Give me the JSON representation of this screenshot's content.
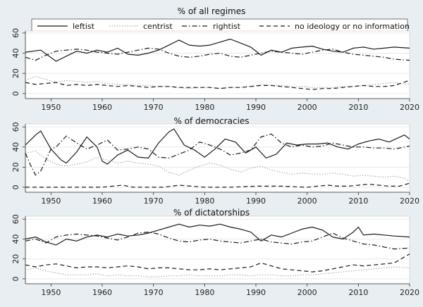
{
  "legend": {
    "entries": [
      {
        "label": "leftist",
        "dash": "solid"
      },
      {
        "label": "centrist",
        "dash": "dotted"
      },
      {
        "label": "rightist",
        "dash": "dashdot"
      },
      {
        "label": "no ideology or no information",
        "dash": "dashed"
      }
    ]
  },
  "chart_data": [
    {
      "type": "line",
      "title": "% of all regimes",
      "x_ticks": [
        1950,
        1960,
        1970,
        1980,
        1990,
        2000,
        2010,
        2020
      ],
      "y_ticks": [
        0,
        20,
        40,
        60
      ],
      "xlim": [
        1945,
        2020
      ],
      "ylim": [
        -5,
        62
      ],
      "grid": "horizontal",
      "series": [
        {
          "name": "leftist",
          "x": [
            1945,
            1948,
            1951,
            1953,
            1955,
            1957,
            1959,
            1961,
            1963,
            1965,
            1967,
            1969,
            1971,
            1973,
            1975,
            1977,
            1979,
            1981,
            1983,
            1985,
            1987,
            1989,
            1991,
            1993,
            1995,
            1997,
            1999,
            2001,
            2003,
            2005,
            2007,
            2009,
            2011,
            2013,
            2015,
            2017,
            2020
          ],
          "y": [
            41,
            43,
            32,
            37,
            42,
            40,
            43,
            41,
            45,
            39,
            38,
            40,
            43,
            48,
            53,
            48,
            47,
            48,
            51,
            54,
            50,
            46,
            38,
            43,
            41,
            45,
            46,
            47,
            44,
            42,
            41,
            45,
            46,
            44,
            45,
            46,
            45
          ]
        },
        {
          "name": "centrist",
          "x": [
            1945,
            1947,
            1949,
            1951,
            1953,
            1955,
            1957,
            1959,
            1961,
            1963,
            1965,
            1967,
            1969,
            1971,
            1973,
            1975,
            1977,
            1979,
            1981,
            1983,
            1985,
            1987,
            1989,
            1991,
            1993,
            1995,
            1997,
            1999,
            2001,
            2003,
            2005,
            2007,
            2009,
            2011,
            2013,
            2015,
            2017,
            2020
          ],
          "y": [
            13,
            17,
            14,
            11,
            13,
            12,
            11,
            12,
            10,
            9,
            9,
            8,
            8,
            7,
            7,
            6,
            5,
            6,
            6,
            5,
            6,
            6,
            7,
            9,
            8,
            8,
            7,
            7,
            6,
            6,
            6,
            7,
            7,
            8,
            9,
            10,
            11,
            9
          ]
        },
        {
          "name": "rightist",
          "x": [
            1945,
            1947,
            1949,
            1951,
            1953,
            1955,
            1957,
            1959,
            1961,
            1963,
            1965,
            1967,
            1969,
            1971,
            1973,
            1975,
            1977,
            1979,
            1981,
            1983,
            1985,
            1987,
            1989,
            1991,
            1993,
            1995,
            1997,
            1999,
            2001,
            2003,
            2005,
            2007,
            2009,
            2011,
            2013,
            2015,
            2017,
            2020
          ],
          "y": [
            36,
            33,
            38,
            42,
            43,
            44,
            43,
            41,
            40,
            39,
            41,
            43,
            45,
            44,
            40,
            37,
            36,
            37,
            39,
            40,
            37,
            36,
            38,
            40,
            42,
            41,
            40,
            39,
            41,
            43,
            44,
            41,
            39,
            38,
            37,
            36,
            34,
            33
          ]
        },
        {
          "name": "no ideology or no information",
          "x": [
            1945,
            1947,
            1949,
            1951,
            1953,
            1955,
            1957,
            1959,
            1961,
            1963,
            1965,
            1967,
            1969,
            1971,
            1973,
            1975,
            1977,
            1979,
            1981,
            1983,
            1985,
            1987,
            1989,
            1991,
            1993,
            1995,
            1997,
            1999,
            2001,
            2003,
            2005,
            2007,
            2009,
            2011,
            2013,
            2015,
            2017,
            2020
          ],
          "y": [
            11,
            9,
            10,
            11,
            8,
            9,
            8,
            9,
            8,
            7,
            8,
            7,
            6,
            7,
            7,
            6,
            6,
            6,
            6,
            5,
            6,
            6,
            7,
            8,
            8,
            7,
            6,
            5,
            4,
            5,
            5,
            6,
            7,
            8,
            7,
            7,
            8,
            13
          ]
        }
      ]
    },
    {
      "type": "line",
      "title": "% of democracies",
      "x_ticks": [
        1950,
        1960,
        1970,
        1980,
        1990,
        2000,
        2010,
        2020
      ],
      "y_ticks": [
        0,
        20,
        40,
        60
      ],
      "xlim": [
        1945,
        2020
      ],
      "ylim": [
        -5,
        63
      ],
      "grid": "horizontal",
      "series": [
        {
          "name": "leftist",
          "x": [
            1945,
            1946,
            1947,
            1948,
            1950,
            1952,
            1953,
            1955,
            1957,
            1959,
            1960,
            1961,
            1963,
            1965,
            1967,
            1969,
            1971,
            1973,
            1974,
            1976,
            1978,
            1980,
            1982,
            1984,
            1986,
            1988,
            1990,
            1992,
            1994,
            1996,
            1998,
            2000,
            2002,
            2004,
            2006,
            2008,
            2010,
            2012,
            2014,
            2016,
            2019,
            2020
          ],
          "y": [
            42,
            47,
            52,
            56,
            38,
            27,
            24,
            35,
            50,
            40,
            26,
            23,
            32,
            37,
            30,
            29,
            44,
            55,
            58,
            42,
            37,
            30,
            38,
            48,
            45,
            34,
            40,
            29,
            33,
            44,
            42,
            43,
            43,
            44,
            40,
            38,
            43,
            46,
            48,
            45,
            52,
            48
          ]
        },
        {
          "name": "centrist",
          "x": [
            1945,
            1947,
            1949,
            1951,
            1953,
            1955,
            1957,
            1959,
            1961,
            1963,
            1965,
            1967,
            1969,
            1971,
            1973,
            1975,
            1977,
            1979,
            1981,
            1983,
            1985,
            1987,
            1989,
            1991,
            1993,
            1995,
            1997,
            1999,
            2001,
            2003,
            2005,
            2007,
            2009,
            2011,
            2013,
            2015,
            2017,
            2019,
            2020
          ],
          "y": [
            34,
            36,
            28,
            23,
            21,
            23,
            25,
            30,
            27,
            24,
            26,
            24,
            23,
            21,
            15,
            12,
            17,
            21,
            24,
            22,
            18,
            15,
            19,
            21,
            17,
            15,
            13,
            14,
            13,
            13,
            14,
            13,
            11,
            12,
            11,
            10,
            11,
            9,
            6
          ]
        },
        {
          "name": "rightist",
          "x": [
            1945,
            1946,
            1947,
            1948,
            1950,
            1951,
            1953,
            1955,
            1957,
            1959,
            1961,
            1963,
            1965,
            1967,
            1969,
            1971,
            1973,
            1975,
            1977,
            1979,
            1981,
            1983,
            1985,
            1987,
            1989,
            1991,
            1993,
            1995,
            1997,
            1999,
            2001,
            2003,
            2005,
            2007,
            2009,
            2011,
            2013,
            2015,
            2017,
            2020
          ],
          "y": [
            34,
            22,
            12,
            16,
            38,
            40,
            51,
            44,
            38,
            42,
            47,
            37,
            38,
            40,
            38,
            30,
            29,
            33,
            37,
            45,
            42,
            38,
            32,
            34,
            37,
            50,
            53,
            44,
            40,
            42,
            40,
            41,
            44,
            42,
            40,
            40,
            39,
            39,
            38,
            41
          ]
        },
        {
          "name": "no ideology or no information",
          "x": [
            1945,
            1950,
            1955,
            1960,
            1962,
            1964,
            1966,
            1970,
            1972,
            1975,
            1980,
            1985,
            1990,
            1995,
            2000,
            2002,
            2004,
            2006,
            2008,
            2010,
            2012,
            2014,
            2016,
            2018,
            2020
          ],
          "y": [
            0,
            0,
            0,
            0,
            1,
            2,
            0,
            0,
            0,
            2,
            0,
            0,
            1,
            1,
            0,
            1,
            2,
            1,
            1,
            2,
            3,
            2,
            1,
            1,
            4
          ]
        }
      ]
    },
    {
      "type": "line",
      "title": "% of dictatorships",
      "x_ticks": [
        1950,
        1960,
        1970,
        1980,
        1990,
        2000,
        2010,
        2020
      ],
      "y_ticks": [
        0,
        20,
        40,
        60
      ],
      "xlim": [
        1945,
        2020
      ],
      "ylim": [
        -5,
        63
      ],
      "grid": "horizontal",
      "series": [
        {
          "name": "leftist",
          "x": [
            1945,
            1947,
            1949,
            1951,
            1953,
            1955,
            1957,
            1959,
            1961,
            1963,
            1965,
            1967,
            1969,
            1971,
            1973,
            1975,
            1977,
            1979,
            1981,
            1983,
            1985,
            1987,
            1989,
            1991,
            1993,
            1995,
            1997,
            1999,
            2001,
            2003,
            2005,
            2007,
            2009,
            2010,
            2011,
            2013,
            2015,
            2017,
            2020
          ],
          "y": [
            40,
            42,
            37,
            34,
            40,
            38,
            42,
            44,
            42,
            45,
            43,
            44,
            46,
            49,
            52,
            55,
            52,
            54,
            53,
            55,
            52,
            50,
            47,
            38,
            44,
            42,
            46,
            50,
            52,
            49,
            42,
            40,
            47,
            52,
            44,
            45,
            44,
            43,
            42
          ]
        },
        {
          "name": "centrist",
          "x": [
            1945,
            1947,
            1949,
            1951,
            1953,
            1955,
            1957,
            1959,
            1961,
            1963,
            1965,
            1967,
            1969,
            1971,
            1973,
            1975,
            1977,
            1979,
            1981,
            1983,
            1985,
            1987,
            1989,
            1991,
            1993,
            1995,
            1997,
            1999,
            2001,
            2003,
            2005,
            2007,
            2009,
            2011,
            2013,
            2015,
            2017,
            2020
          ],
          "y": [
            9,
            11,
            8,
            6,
            4,
            4,
            4,
            5,
            3,
            4,
            3,
            3,
            2,
            2,
            3,
            3,
            4,
            3,
            3,
            3,
            4,
            4,
            3,
            4,
            4,
            3,
            3,
            4,
            4,
            5,
            6,
            7,
            8,
            9,
            10,
            11,
            12,
            11
          ]
        },
        {
          "name": "rightist",
          "x": [
            1945,
            1947,
            1949,
            1951,
            1953,
            1955,
            1957,
            1959,
            1961,
            1963,
            1965,
            1967,
            1969,
            1971,
            1973,
            1975,
            1977,
            1979,
            1981,
            1983,
            1985,
            1987,
            1989,
            1991,
            1993,
            1995,
            1997,
            1999,
            2001,
            2003,
            2005,
            2007,
            2009,
            2011,
            2013,
            2015,
            2017,
            2020
          ],
          "y": [
            38,
            40,
            36,
            42,
            44,
            45,
            44,
            43,
            41,
            39,
            42,
            46,
            47,
            45,
            41,
            38,
            37,
            39,
            40,
            38,
            37,
            36,
            38,
            40,
            37,
            36,
            35,
            37,
            38,
            42,
            46,
            41,
            38,
            35,
            34,
            32,
            30,
            31
          ]
        },
        {
          "name": "no ideology or no information",
          "x": [
            1945,
            1947,
            1949,
            1951,
            1953,
            1955,
            1957,
            1959,
            1961,
            1963,
            1965,
            1967,
            1969,
            1971,
            1973,
            1975,
            1977,
            1979,
            1981,
            1983,
            1985,
            1987,
            1989,
            1991,
            1993,
            1995,
            1997,
            1999,
            2001,
            2003,
            2005,
            2007,
            2009,
            2011,
            2013,
            2015,
            2017,
            2020
          ],
          "y": [
            14,
            12,
            14,
            15,
            13,
            11,
            12,
            12,
            11,
            12,
            13,
            12,
            10,
            11,
            11,
            10,
            9,
            9,
            10,
            9,
            10,
            11,
            12,
            16,
            13,
            10,
            9,
            8,
            7,
            8,
            10,
            12,
            14,
            13,
            14,
            15,
            16,
            25
          ]
        }
      ]
    }
  ]
}
